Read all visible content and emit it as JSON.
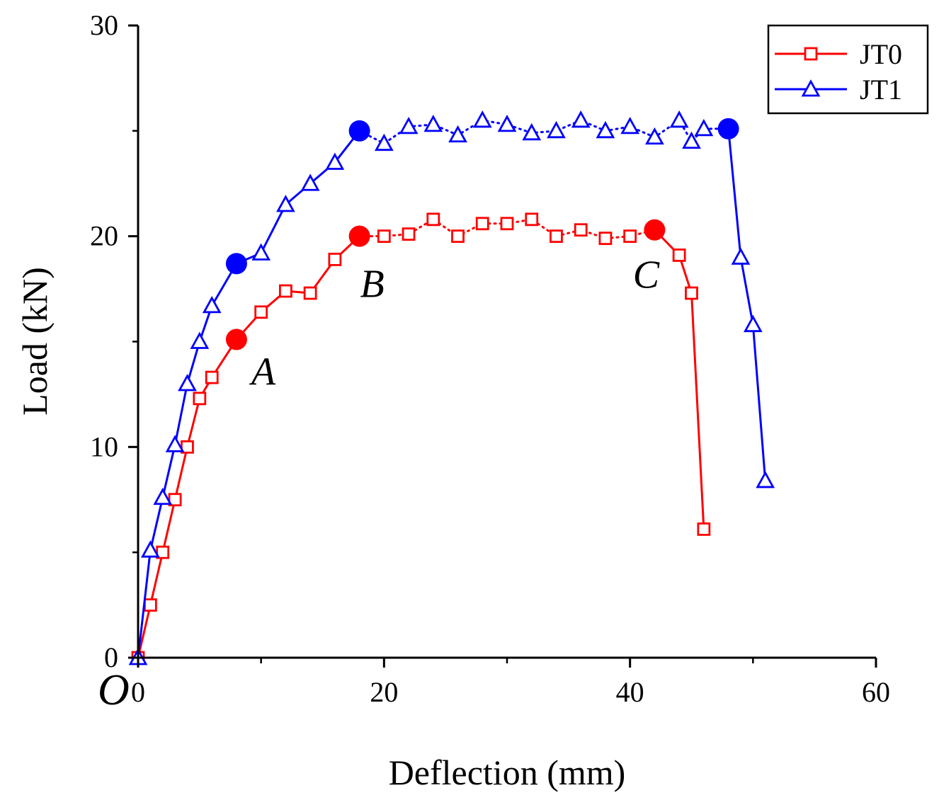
{
  "chart_data": {
    "type": "line",
    "title": "",
    "xlabel": "Deflection (mm)",
    "ylabel": "Load (kN)",
    "xlim": [
      0,
      60
    ],
    "ylim": [
      0,
      30
    ],
    "x_ticks": [
      0,
      20,
      40,
      60
    ],
    "y_ticks": [
      0,
      10,
      20,
      30
    ],
    "x_tick_labels": [
      "0",
      "20",
      "40",
      "60"
    ],
    "y_tick_labels": [
      "0",
      "10",
      "20",
      "30"
    ],
    "origin_label": "O",
    "grid": false,
    "legend": {
      "position": "top-right",
      "entries": [
        "JT0",
        "JT1"
      ]
    },
    "series": [
      {
        "name": "JT0",
        "color": "#ff0000",
        "marker": "square",
        "x": [
          0,
          1,
          2,
          3,
          4,
          5,
          6,
          8,
          10,
          12,
          14,
          16,
          18,
          20,
          22,
          24,
          26,
          28,
          30,
          32,
          34,
          36,
          38,
          40,
          42,
          44,
          45,
          46
        ],
        "y": [
          0,
          2.5,
          5,
          7.5,
          10,
          12.3,
          13.3,
          15.1,
          16.4,
          17.4,
          17.3,
          18.9,
          20,
          20,
          20.1,
          20.8,
          20,
          20.6,
          20.6,
          20.8,
          20,
          20.3,
          19.9,
          20,
          20.3,
          19.1,
          17.3,
          6.1
        ]
      },
      {
        "name": "JT1",
        "color": "#0000ff",
        "marker": "triangle",
        "x": [
          0,
          1,
          2,
          3,
          4,
          5,
          6,
          8,
          10,
          12,
          14,
          16,
          18,
          20,
          22,
          24,
          26,
          28,
          30,
          32,
          34,
          36,
          38,
          40,
          42,
          44,
          45,
          46,
          48,
          49,
          50,
          51
        ],
        "y": [
          0,
          5.1,
          7.6,
          10.1,
          13,
          15,
          16.7,
          18.7,
          19.2,
          21.5,
          22.5,
          23.5,
          25,
          24.4,
          25.2,
          25.3,
          24.8,
          25.5,
          25.3,
          24.9,
          25,
          25.5,
          25,
          25.2,
          24.7,
          25.5,
          24.5,
          25.1,
          25.1,
          19,
          15.8,
          8.4
        ]
      }
    ],
    "annotations": [
      {
        "label": "A",
        "x": 8,
        "y": 15.1,
        "series": "JT0"
      },
      {
        "label": "B",
        "x": 18,
        "y": 20,
        "series": "JT0"
      },
      {
        "label": "C",
        "x": 42,
        "y": 20.3,
        "series": "JT0"
      }
    ],
    "key_points": [
      {
        "series": "JT0",
        "x": 8,
        "y": 15.1
      },
      {
        "series": "JT0",
        "x": 18,
        "y": 20
      },
      {
        "series": "JT0",
        "x": 42,
        "y": 20.3
      },
      {
        "series": "JT1",
        "x": 8,
        "y": 18.7
      },
      {
        "series": "JT1",
        "x": 18,
        "y": 25
      },
      {
        "series": "JT1",
        "x": 48,
        "y": 25.1
      }
    ]
  }
}
